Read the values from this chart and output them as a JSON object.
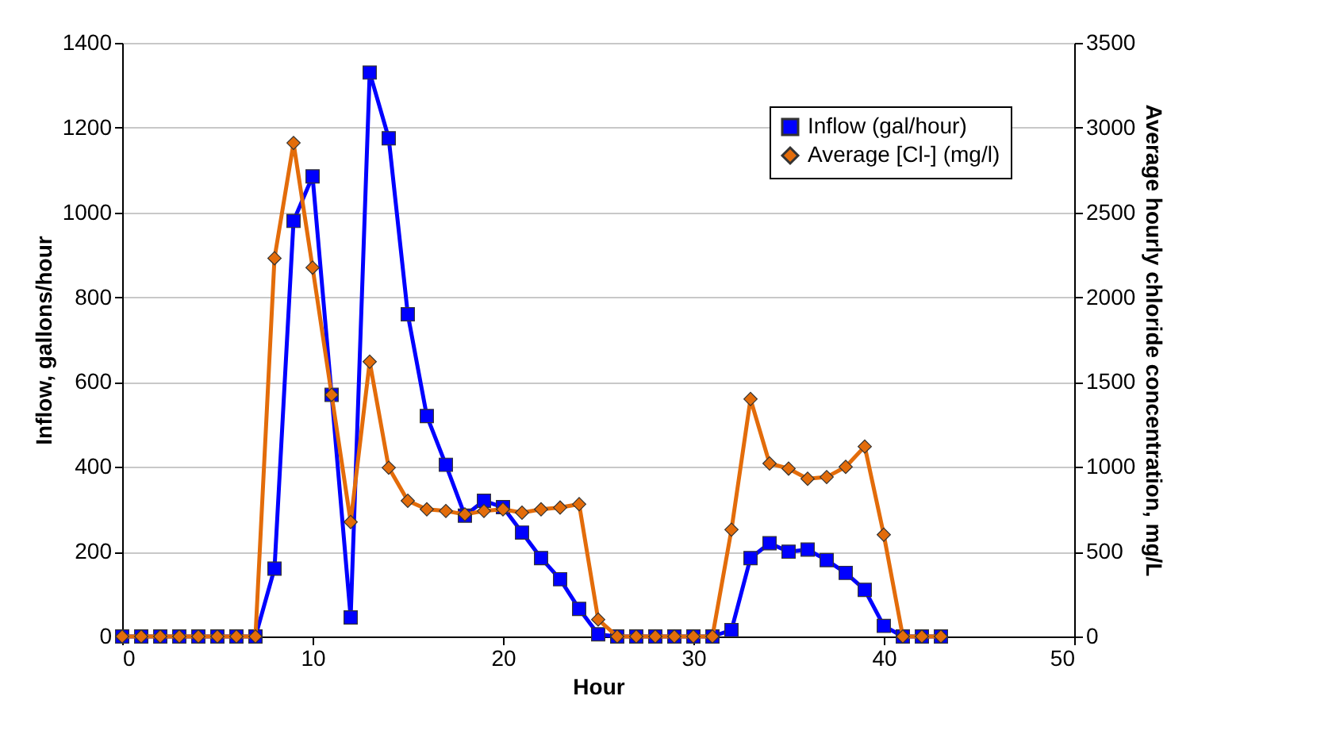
{
  "chart_data": {
    "type": "line",
    "xlabel": "Hour",
    "ylabel": "Inflow, gallons/hour",
    "y2label": "Average hourly chloride concentration, mg/L",
    "x": [
      0,
      1,
      2,
      3,
      4,
      5,
      6,
      7,
      8,
      9,
      10,
      11,
      12,
      13,
      14,
      15,
      16,
      17,
      18,
      19,
      20,
      21,
      22,
      23,
      24,
      25,
      26,
      27,
      28,
      29,
      30,
      31,
      32,
      33,
      34,
      35,
      36,
      37,
      38,
      39,
      40,
      41,
      42,
      43
    ],
    "series": [
      {
        "name": "Inflow (gal/hour)",
        "color": "#0000ff",
        "marker": "square",
        "values": [
          0,
          0,
          0,
          0,
          0,
          0,
          0,
          0,
          160,
          980,
          1085,
          570,
          45,
          1330,
          1175,
          760,
          520,
          405,
          285,
          320,
          305,
          245,
          185,
          135,
          65,
          5,
          0,
          0,
          0,
          0,
          0,
          0,
          15,
          185,
          220,
          200,
          205,
          180,
          150,
          110,
          25,
          0,
          0,
          0
        ]
      },
      {
        "name": "Average [Cl-] (mg/l)",
        "color": "#e36c0a",
        "marker": "diamond",
        "axis": "y2",
        "values": [
          0,
          0,
          0,
          0,
          0,
          0,
          0,
          0,
          2230,
          2910,
          2175,
          1425,
          675,
          1620,
          995,
          800,
          750,
          740,
          720,
          740,
          750,
          730,
          750,
          760,
          780,
          100,
          0,
          0,
          0,
          0,
          0,
          0,
          630,
          1400,
          1020,
          990,
          930,
          940,
          1000,
          1120,
          600,
          0,
          0,
          0
        ]
      }
    ],
    "xlim": [
      0,
      50
    ],
    "xticks": [
      0,
      10,
      20,
      30,
      40,
      50
    ],
    "ylim": [
      0,
      1400
    ],
    "yticks": [
      0,
      200,
      400,
      600,
      800,
      1000,
      1200,
      1400
    ],
    "y2lim": [
      0,
      3500
    ],
    "y2ticks": [
      0,
      500,
      1000,
      1500,
      2000,
      2500,
      3000,
      3500
    ],
    "grid": "y",
    "legend": "top right",
    "line_style": "solid"
  }
}
